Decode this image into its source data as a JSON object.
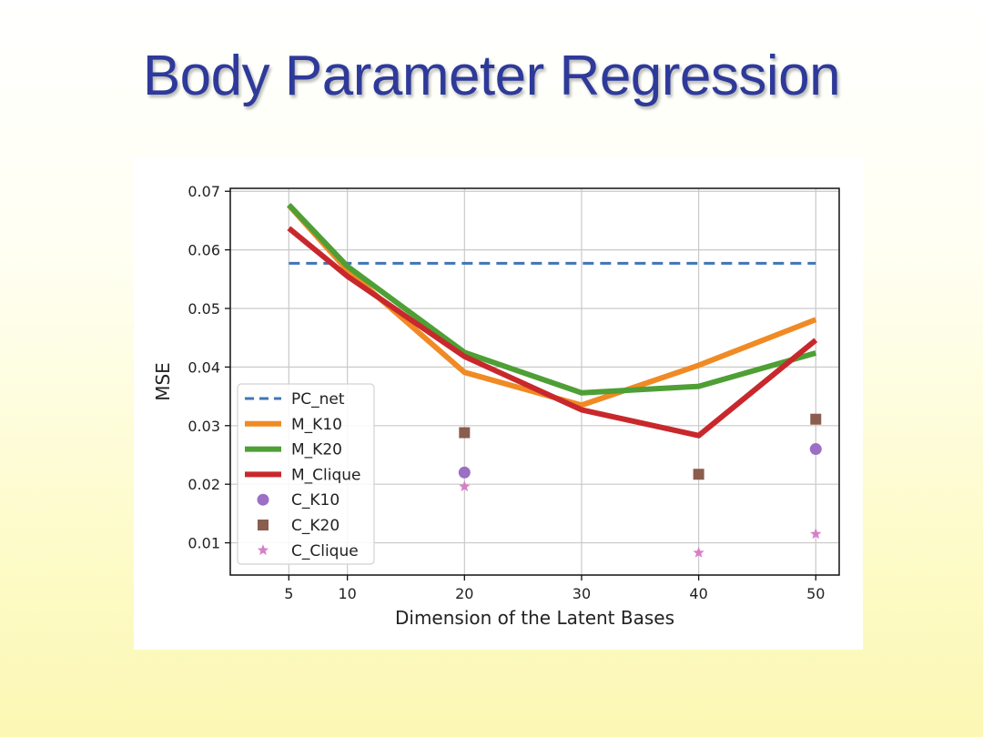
{
  "slide": {
    "title": "Body Parameter Regression"
  },
  "chart_data": {
    "type": "line",
    "xlabel": "Dimension of the Latent Bases",
    "ylabel": "MSE",
    "xlim": [
      0,
      52
    ],
    "ylim": [
      0.0045,
      0.0705
    ],
    "x_ticks": [
      5,
      10,
      20,
      30,
      40,
      50
    ],
    "y_ticks": [
      0.01,
      0.02,
      0.03,
      0.04,
      0.05,
      0.06,
      0.07
    ],
    "grid": true,
    "legend_position": "lower-left",
    "series": [
      {
        "name": "PC_net",
        "kind": "line",
        "style": "dashed",
        "color": "#3f76b4",
        "x": [
          5,
          50
        ],
        "y": [
          0.0577,
          0.0577
        ]
      },
      {
        "name": "M_K10",
        "kind": "line",
        "style": "solid",
        "color": "#f08a24",
        "x": [
          5,
          10,
          20,
          30,
          40,
          50
        ],
        "y": [
          0.0676,
          0.0565,
          0.0391,
          0.0335,
          0.0403,
          0.0481
        ]
      },
      {
        "name": "M_K20",
        "kind": "line",
        "style": "solid",
        "color": "#4e9f35",
        "x": [
          5,
          10,
          20,
          30,
          40,
          50
        ],
        "y": [
          0.0677,
          0.0572,
          0.0425,
          0.0356,
          0.0367,
          0.0424
        ]
      },
      {
        "name": "M_Clique",
        "kind": "line",
        "style": "solid",
        "color": "#c8282c",
        "x": [
          5,
          10,
          20,
          30,
          40,
          50
        ],
        "y": [
          0.0637,
          0.0555,
          0.0418,
          0.0327,
          0.0283,
          0.0446
        ]
      },
      {
        "name": "C_K10",
        "kind": "scatter",
        "marker": "circle",
        "color": "#9a6fc4",
        "x": [
          20,
          50
        ],
        "y": [
          0.022,
          0.026
        ]
      },
      {
        "name": "C_K20",
        "kind": "scatter",
        "marker": "square",
        "color": "#8a5d4e",
        "x": [
          20,
          40,
          50
        ],
        "y": [
          0.0288,
          0.0217,
          0.0311
        ]
      },
      {
        "name": "C_Clique",
        "kind": "scatter",
        "marker": "star",
        "color": "#d77fc9",
        "x": [
          20,
          40,
          50
        ],
        "y": [
          0.0196,
          0.0083,
          0.0115
        ]
      }
    ]
  }
}
